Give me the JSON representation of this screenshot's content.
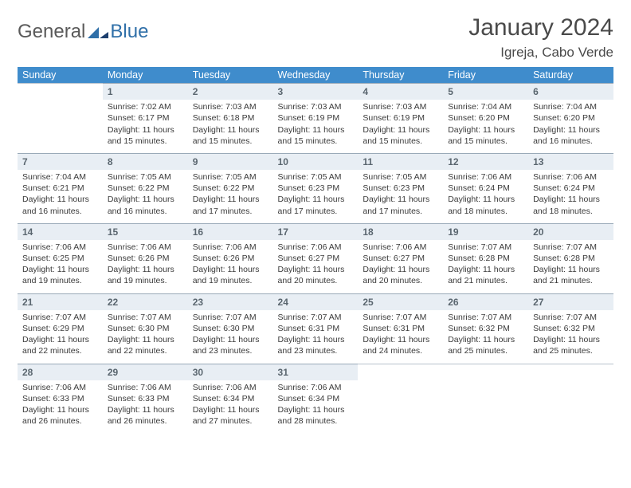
{
  "logo": {
    "text1": "General",
    "text2": "Blue"
  },
  "title": "January 2024",
  "location": "Igreja, Cabo Verde",
  "colors": {
    "header_bg": "#3f8ccc",
    "header_text": "#ffffff",
    "daynum_bg": "#e8eef4",
    "daynum_text": "#5a666f",
    "body_text": "#3a3a3a",
    "logo_gray": "#5a5a5a",
    "logo_blue": "#2f6fa8"
  },
  "weekdays": [
    "Sunday",
    "Monday",
    "Tuesday",
    "Wednesday",
    "Thursday",
    "Friday",
    "Saturday"
  ],
  "weeks": [
    {
      "nums": [
        "",
        "1",
        "2",
        "3",
        "4",
        "5",
        "6"
      ],
      "cells": [
        null,
        {
          "sr": "Sunrise: 7:02 AM",
          "ss": "Sunset: 6:17 PM",
          "d1": "Daylight: 11 hours",
          "d2": "and 15 minutes."
        },
        {
          "sr": "Sunrise: 7:03 AM",
          "ss": "Sunset: 6:18 PM",
          "d1": "Daylight: 11 hours",
          "d2": "and 15 minutes."
        },
        {
          "sr": "Sunrise: 7:03 AM",
          "ss": "Sunset: 6:19 PM",
          "d1": "Daylight: 11 hours",
          "d2": "and 15 minutes."
        },
        {
          "sr": "Sunrise: 7:03 AM",
          "ss": "Sunset: 6:19 PM",
          "d1": "Daylight: 11 hours",
          "d2": "and 15 minutes."
        },
        {
          "sr": "Sunrise: 7:04 AM",
          "ss": "Sunset: 6:20 PM",
          "d1": "Daylight: 11 hours",
          "d2": "and 15 minutes."
        },
        {
          "sr": "Sunrise: 7:04 AM",
          "ss": "Sunset: 6:20 PM",
          "d1": "Daylight: 11 hours",
          "d2": "and 16 minutes."
        }
      ]
    },
    {
      "nums": [
        "7",
        "8",
        "9",
        "10",
        "11",
        "12",
        "13"
      ],
      "cells": [
        {
          "sr": "Sunrise: 7:04 AM",
          "ss": "Sunset: 6:21 PM",
          "d1": "Daylight: 11 hours",
          "d2": "and 16 minutes."
        },
        {
          "sr": "Sunrise: 7:05 AM",
          "ss": "Sunset: 6:22 PM",
          "d1": "Daylight: 11 hours",
          "d2": "and 16 minutes."
        },
        {
          "sr": "Sunrise: 7:05 AM",
          "ss": "Sunset: 6:22 PM",
          "d1": "Daylight: 11 hours",
          "d2": "and 17 minutes."
        },
        {
          "sr": "Sunrise: 7:05 AM",
          "ss": "Sunset: 6:23 PM",
          "d1": "Daylight: 11 hours",
          "d2": "and 17 minutes."
        },
        {
          "sr": "Sunrise: 7:05 AM",
          "ss": "Sunset: 6:23 PM",
          "d1": "Daylight: 11 hours",
          "d2": "and 17 minutes."
        },
        {
          "sr": "Sunrise: 7:06 AM",
          "ss": "Sunset: 6:24 PM",
          "d1": "Daylight: 11 hours",
          "d2": "and 18 minutes."
        },
        {
          "sr": "Sunrise: 7:06 AM",
          "ss": "Sunset: 6:24 PM",
          "d1": "Daylight: 11 hours",
          "d2": "and 18 minutes."
        }
      ]
    },
    {
      "nums": [
        "14",
        "15",
        "16",
        "17",
        "18",
        "19",
        "20"
      ],
      "cells": [
        {
          "sr": "Sunrise: 7:06 AM",
          "ss": "Sunset: 6:25 PM",
          "d1": "Daylight: 11 hours",
          "d2": "and 19 minutes."
        },
        {
          "sr": "Sunrise: 7:06 AM",
          "ss": "Sunset: 6:26 PM",
          "d1": "Daylight: 11 hours",
          "d2": "and 19 minutes."
        },
        {
          "sr": "Sunrise: 7:06 AM",
          "ss": "Sunset: 6:26 PM",
          "d1": "Daylight: 11 hours",
          "d2": "and 19 minutes."
        },
        {
          "sr": "Sunrise: 7:06 AM",
          "ss": "Sunset: 6:27 PM",
          "d1": "Daylight: 11 hours",
          "d2": "and 20 minutes."
        },
        {
          "sr": "Sunrise: 7:06 AM",
          "ss": "Sunset: 6:27 PM",
          "d1": "Daylight: 11 hours",
          "d2": "and 20 minutes."
        },
        {
          "sr": "Sunrise: 7:07 AM",
          "ss": "Sunset: 6:28 PM",
          "d1": "Daylight: 11 hours",
          "d2": "and 21 minutes."
        },
        {
          "sr": "Sunrise: 7:07 AM",
          "ss": "Sunset: 6:28 PM",
          "d1": "Daylight: 11 hours",
          "d2": "and 21 minutes."
        }
      ]
    },
    {
      "nums": [
        "21",
        "22",
        "23",
        "24",
        "25",
        "26",
        "27"
      ],
      "cells": [
        {
          "sr": "Sunrise: 7:07 AM",
          "ss": "Sunset: 6:29 PM",
          "d1": "Daylight: 11 hours",
          "d2": "and 22 minutes."
        },
        {
          "sr": "Sunrise: 7:07 AM",
          "ss": "Sunset: 6:30 PM",
          "d1": "Daylight: 11 hours",
          "d2": "and 22 minutes."
        },
        {
          "sr": "Sunrise: 7:07 AM",
          "ss": "Sunset: 6:30 PM",
          "d1": "Daylight: 11 hours",
          "d2": "and 23 minutes."
        },
        {
          "sr": "Sunrise: 7:07 AM",
          "ss": "Sunset: 6:31 PM",
          "d1": "Daylight: 11 hours",
          "d2": "and 23 minutes."
        },
        {
          "sr": "Sunrise: 7:07 AM",
          "ss": "Sunset: 6:31 PM",
          "d1": "Daylight: 11 hours",
          "d2": "and 24 minutes."
        },
        {
          "sr": "Sunrise: 7:07 AM",
          "ss": "Sunset: 6:32 PM",
          "d1": "Daylight: 11 hours",
          "d2": "and 25 minutes."
        },
        {
          "sr": "Sunrise: 7:07 AM",
          "ss": "Sunset: 6:32 PM",
          "d1": "Daylight: 11 hours",
          "d2": "and 25 minutes."
        }
      ]
    },
    {
      "nums": [
        "28",
        "29",
        "30",
        "31",
        "",
        "",
        ""
      ],
      "cells": [
        {
          "sr": "Sunrise: 7:06 AM",
          "ss": "Sunset: 6:33 PM",
          "d1": "Daylight: 11 hours",
          "d2": "and 26 minutes."
        },
        {
          "sr": "Sunrise: 7:06 AM",
          "ss": "Sunset: 6:33 PM",
          "d1": "Daylight: 11 hours",
          "d2": "and 26 minutes."
        },
        {
          "sr": "Sunrise: 7:06 AM",
          "ss": "Sunset: 6:34 PM",
          "d1": "Daylight: 11 hours",
          "d2": "and 27 minutes."
        },
        {
          "sr": "Sunrise: 7:06 AM",
          "ss": "Sunset: 6:34 PM",
          "d1": "Daylight: 11 hours",
          "d2": "and 28 minutes."
        },
        null,
        null,
        null
      ]
    }
  ]
}
